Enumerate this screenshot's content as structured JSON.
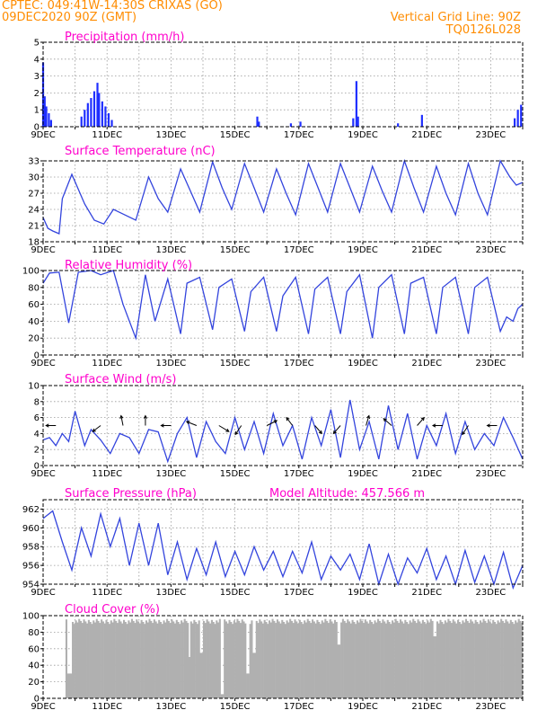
{
  "header": {
    "station": "CPTEC:   049:41W-14:30S   CRIXAS (GO)",
    "run": "09DEC2020 90Z (GMT)",
    "grid_line": "Vertical Grid Line: 90Z",
    "model": "TQ0126L028"
  },
  "colors": {
    "header": "#ff8c00",
    "title": "#ff00cc",
    "line": "#3344dd",
    "bar": "#1f2fff",
    "cloud": "#b0b0b0",
    "grid": "#999999"
  },
  "x_axis": {
    "labels": [
      "9DEC",
      "11DEC",
      "13DEC",
      "15DEC",
      "17DEC",
      "19DEC",
      "21DEC",
      "23DEC"
    ],
    "days": 15
  },
  "chart_data": [
    {
      "type": "bar",
      "title": "Precipitation (mm/h)",
      "ylim": [
        0,
        5
      ],
      "yticks": [
        0,
        1,
        2,
        3,
        4,
        5
      ],
      "bursts": [
        {
          "day": 0.0,
          "value": 3.8
        },
        {
          "day": 0.05,
          "value": 1.8
        },
        {
          "day": 0.1,
          "value": 1.2
        },
        {
          "day": 0.18,
          "value": 0.8
        },
        {
          "day": 0.25,
          "value": 0.4
        },
        {
          "day": 1.2,
          "value": 0.6
        },
        {
          "day": 1.3,
          "value": 1.0
        },
        {
          "day": 1.4,
          "value": 1.4
        },
        {
          "day": 1.5,
          "value": 1.7
        },
        {
          "day": 1.6,
          "value": 2.1
        },
        {
          "day": 1.7,
          "value": 2.6
        },
        {
          "day": 1.75,
          "value": 2.0
        },
        {
          "day": 1.85,
          "value": 1.5
        },
        {
          "day": 1.95,
          "value": 1.2
        },
        {
          "day": 2.05,
          "value": 0.8
        },
        {
          "day": 2.15,
          "value": 0.4
        },
        {
          "day": 6.7,
          "value": 0.6
        },
        {
          "day": 6.75,
          "value": 0.3
        },
        {
          "day": 7.75,
          "value": 0.2
        },
        {
          "day": 8.05,
          "value": 0.3
        },
        {
          "day": 9.7,
          "value": 0.5
        },
        {
          "day": 9.8,
          "value": 2.7
        },
        {
          "day": 9.85,
          "value": 0.6
        },
        {
          "day": 11.1,
          "value": 0.2
        },
        {
          "day": 11.85,
          "value": 0.7
        },
        {
          "day": 14.75,
          "value": 0.5
        },
        {
          "day": 14.85,
          "value": 1.0
        },
        {
          "day": 14.95,
          "value": 1.3
        }
      ]
    },
    {
      "type": "line",
      "title": "Surface Temperature (nC)",
      "ylim": [
        18,
        33
      ],
      "yticks": [
        18,
        21,
        24,
        27,
        30,
        33
      ],
      "days": [
        0,
        0.15,
        0.3,
        0.5,
        0.6,
        0.9,
        1.3,
        1.6,
        1.9,
        2.2,
        2.9,
        3.3,
        3.6,
        3.9,
        4.3,
        4.6,
        4.9,
        5.3,
        5.6,
        5.9,
        6.3,
        6.6,
        6.9,
        7.3,
        7.6,
        7.9,
        8.3,
        8.6,
        8.9,
        9.3,
        9.6,
        9.9,
        10.3,
        10.6,
        10.9,
        11.3,
        11.6,
        11.9,
        12.3,
        12.6,
        12.9,
        13.3,
        13.6,
        13.9,
        14.3,
        14.6,
        14.8,
        15.0
      ],
      "values": [
        22.5,
        20.5,
        20.0,
        19.5,
        26.0,
        30.5,
        25.0,
        22.0,
        21.3,
        24.0,
        22.0,
        30.0,
        26.0,
        23.5,
        31.5,
        27.5,
        23.5,
        32.8,
        28.0,
        24.0,
        32.5,
        28.0,
        23.5,
        31.5,
        27.0,
        23.0,
        32.5,
        28.0,
        23.5,
        32.5,
        28.0,
        23.5,
        32.0,
        27.5,
        23.5,
        33.0,
        28.0,
        23.5,
        32.0,
        27.0,
        23.0,
        32.5,
        27.0,
        23.0,
        33.0,
        30.0,
        28.5,
        29.0
      ]
    },
    {
      "type": "line",
      "title": "Relative Humidity (%)",
      "ylim": [
        0,
        100
      ],
      "yticks": [
        0,
        20,
        40,
        60,
        80,
        100
      ],
      "days": [
        0,
        0.2,
        0.5,
        0.8,
        1.1,
        1.5,
        1.8,
        2.2,
        2.5,
        2.9,
        3.2,
        3.5,
        3.9,
        4.3,
        4.5,
        4.9,
        5.3,
        5.5,
        5.9,
        6.3,
        6.5,
        6.9,
        7.3,
        7.5,
        7.9,
        8.3,
        8.5,
        8.9,
        9.3,
        9.5,
        9.9,
        10.3,
        10.5,
        10.9,
        11.3,
        11.5,
        11.9,
        12.3,
        12.5,
        12.9,
        13.3,
        13.5,
        13.9,
        14.3,
        14.5,
        14.7,
        14.85,
        15.0
      ],
      "values": [
        85,
        97,
        98,
        38,
        98,
        100,
        95,
        100,
        60,
        20,
        95,
        40,
        90,
        25,
        85,
        92,
        30,
        80,
        90,
        28,
        75,
        92,
        28,
        70,
        92,
        25,
        78,
        92,
        25,
        75,
        95,
        20,
        80,
        95,
        25,
        85,
        92,
        25,
        80,
        92,
        25,
        80,
        92,
        28,
        45,
        40,
        55,
        60
      ]
    },
    {
      "type": "line",
      "title": "Surface Wind (m/s)",
      "ylim": [
        0,
        10
      ],
      "yticks": [
        0,
        2,
        4,
        6,
        8,
        10
      ],
      "days": [
        0,
        0.2,
        0.4,
        0.6,
        0.8,
        1.0,
        1.3,
        1.5,
        1.8,
        2.1,
        2.4,
        2.7,
        3.0,
        3.3,
        3.6,
        3.9,
        4.2,
        4.5,
        4.8,
        5.1,
        5.4,
        5.7,
        6.0,
        6.3,
        6.6,
        6.9,
        7.2,
        7.5,
        7.8,
        8.1,
        8.4,
        8.7,
        9.0,
        9.3,
        9.6,
        9.9,
        10.2,
        10.5,
        10.8,
        11.1,
        11.4,
        11.7,
        12.0,
        12.3,
        12.6,
        12.9,
        13.2,
        13.5,
        13.8,
        14.1,
        14.4,
        14.7,
        15.0
      ],
      "values": [
        3.2,
        3.5,
        2.5,
        4.0,
        3.0,
        6.8,
        2.5,
        4.5,
        3.2,
        1.5,
        4.0,
        3.5,
        1.5,
        4.5,
        4.2,
        0.5,
        4.0,
        6.0,
        1.0,
        5.5,
        3.0,
        1.5,
        6.0,
        2.0,
        5.5,
        1.5,
        6.5,
        2.5,
        5.0,
        0.8,
        6.0,
        2.5,
        7.0,
        1.0,
        8.2,
        2.0,
        5.5,
        0.8,
        7.5,
        2.0,
        6.5,
        0.8,
        5.0,
        2.5,
        6.5,
        1.5,
        5.5,
        2.0,
        4.0,
        2.5,
        6.0,
        3.5,
        0.8
      ],
      "arrows": [
        {
          "day": 0.4,
          "dx": -1,
          "dy": 0
        },
        {
          "day": 1.8,
          "dx": -0.8,
          "dy": 0.6
        },
        {
          "day": 2.5,
          "dx": -0.2,
          "dy": -1
        },
        {
          "day": 3.2,
          "dx": 0,
          "dy": -1
        },
        {
          "day": 4.0,
          "dx": -1,
          "dy": 0
        },
        {
          "day": 4.8,
          "dx": -1,
          "dy": -0.4
        },
        {
          "day": 5.5,
          "dx": 1,
          "dy": 0.6
        },
        {
          "day": 6.2,
          "dx": -0.6,
          "dy": 0.9
        },
        {
          "day": 7.0,
          "dx": 1,
          "dy": -0.5
        },
        {
          "day": 7.8,
          "dx": -0.6,
          "dy": -0.8
        },
        {
          "day": 8.5,
          "dx": 0.7,
          "dy": 0.8
        },
        {
          "day": 9.3,
          "dx": -0.7,
          "dy": 0.8
        },
        {
          "day": 10.1,
          "dx": 0.3,
          "dy": -1
        },
        {
          "day": 10.9,
          "dx": -0.8,
          "dy": -0.7
        },
        {
          "day": 11.7,
          "dx": 0.7,
          "dy": -0.8
        },
        {
          "day": 12.5,
          "dx": -1,
          "dy": 0
        },
        {
          "day": 13.3,
          "dx": -0.6,
          "dy": 0.9
        },
        {
          "day": 14.2,
          "dx": -1,
          "dy": 0
        }
      ]
    },
    {
      "type": "line",
      "title": "Surface Pressure (hPa)",
      "subtitle": "Model Altitude: 457.566  m",
      "ylim": [
        954,
        963
      ],
      "yticks": [
        954,
        956,
        958,
        960,
        962
      ],
      "days": [
        0,
        0.3,
        0.6,
        0.9,
        1.2,
        1.5,
        1.8,
        2.1,
        2.4,
        2.7,
        3.0,
        3.3,
        3.6,
        3.9,
        4.2,
        4.5,
        4.8,
        5.1,
        5.4,
        5.7,
        6.0,
        6.3,
        6.6,
        6.9,
        7.2,
        7.5,
        7.8,
        8.1,
        8.4,
        8.7,
        9.0,
        9.3,
        9.6,
        9.9,
        10.2,
        10.5,
        10.8,
        11.1,
        11.4,
        11.7,
        12.0,
        12.3,
        12.6,
        12.9,
        13.2,
        13.5,
        13.8,
        14.1,
        14.4,
        14.7,
        15.0
      ],
      "values": [
        961.0,
        961.8,
        958.5,
        955.5,
        960.0,
        957.0,
        961.5,
        958.0,
        961.0,
        956.0,
        960.5,
        956.0,
        960.5,
        955.0,
        958.5,
        954.5,
        957.8,
        955.0,
        958.5,
        954.8,
        957.5,
        955.0,
        958.0,
        955.5,
        957.5,
        954.8,
        957.5,
        955.2,
        958.5,
        954.5,
        957.0,
        955.5,
        957.2,
        954.5,
        958.3,
        954.0,
        957.2,
        954.0,
        956.8,
        955.2,
        957.8,
        954.5,
        957.0,
        954.0,
        957.6,
        954.2,
        957.0,
        954.0,
        957.4,
        953.6,
        956.0
      ]
    },
    {
      "type": "bar",
      "title": "Cloud Cover (%)",
      "ylim": [
        0,
        100
      ],
      "yticks": [
        0,
        20,
        40,
        60,
        80,
        100
      ],
      "base": 96,
      "dips": [
        {
          "day": 0.0,
          "width": 0.7,
          "value": 0
        },
        {
          "day": 0.75,
          "width": 0.12,
          "value": 30
        },
        {
          "day": 4.55,
          "width": 0.05,
          "value": 50
        },
        {
          "day": 4.9,
          "width": 0.06,
          "value": 55
        },
        {
          "day": 5.55,
          "width": 0.08,
          "value": 5
        },
        {
          "day": 6.35,
          "width": 0.06,
          "value": 30
        },
        {
          "day": 6.55,
          "width": 0.08,
          "value": 55
        },
        {
          "day": 9.2,
          "width": 0.08,
          "value": 65
        },
        {
          "day": 12.2,
          "width": 0.06,
          "value": 75
        }
      ]
    }
  ]
}
